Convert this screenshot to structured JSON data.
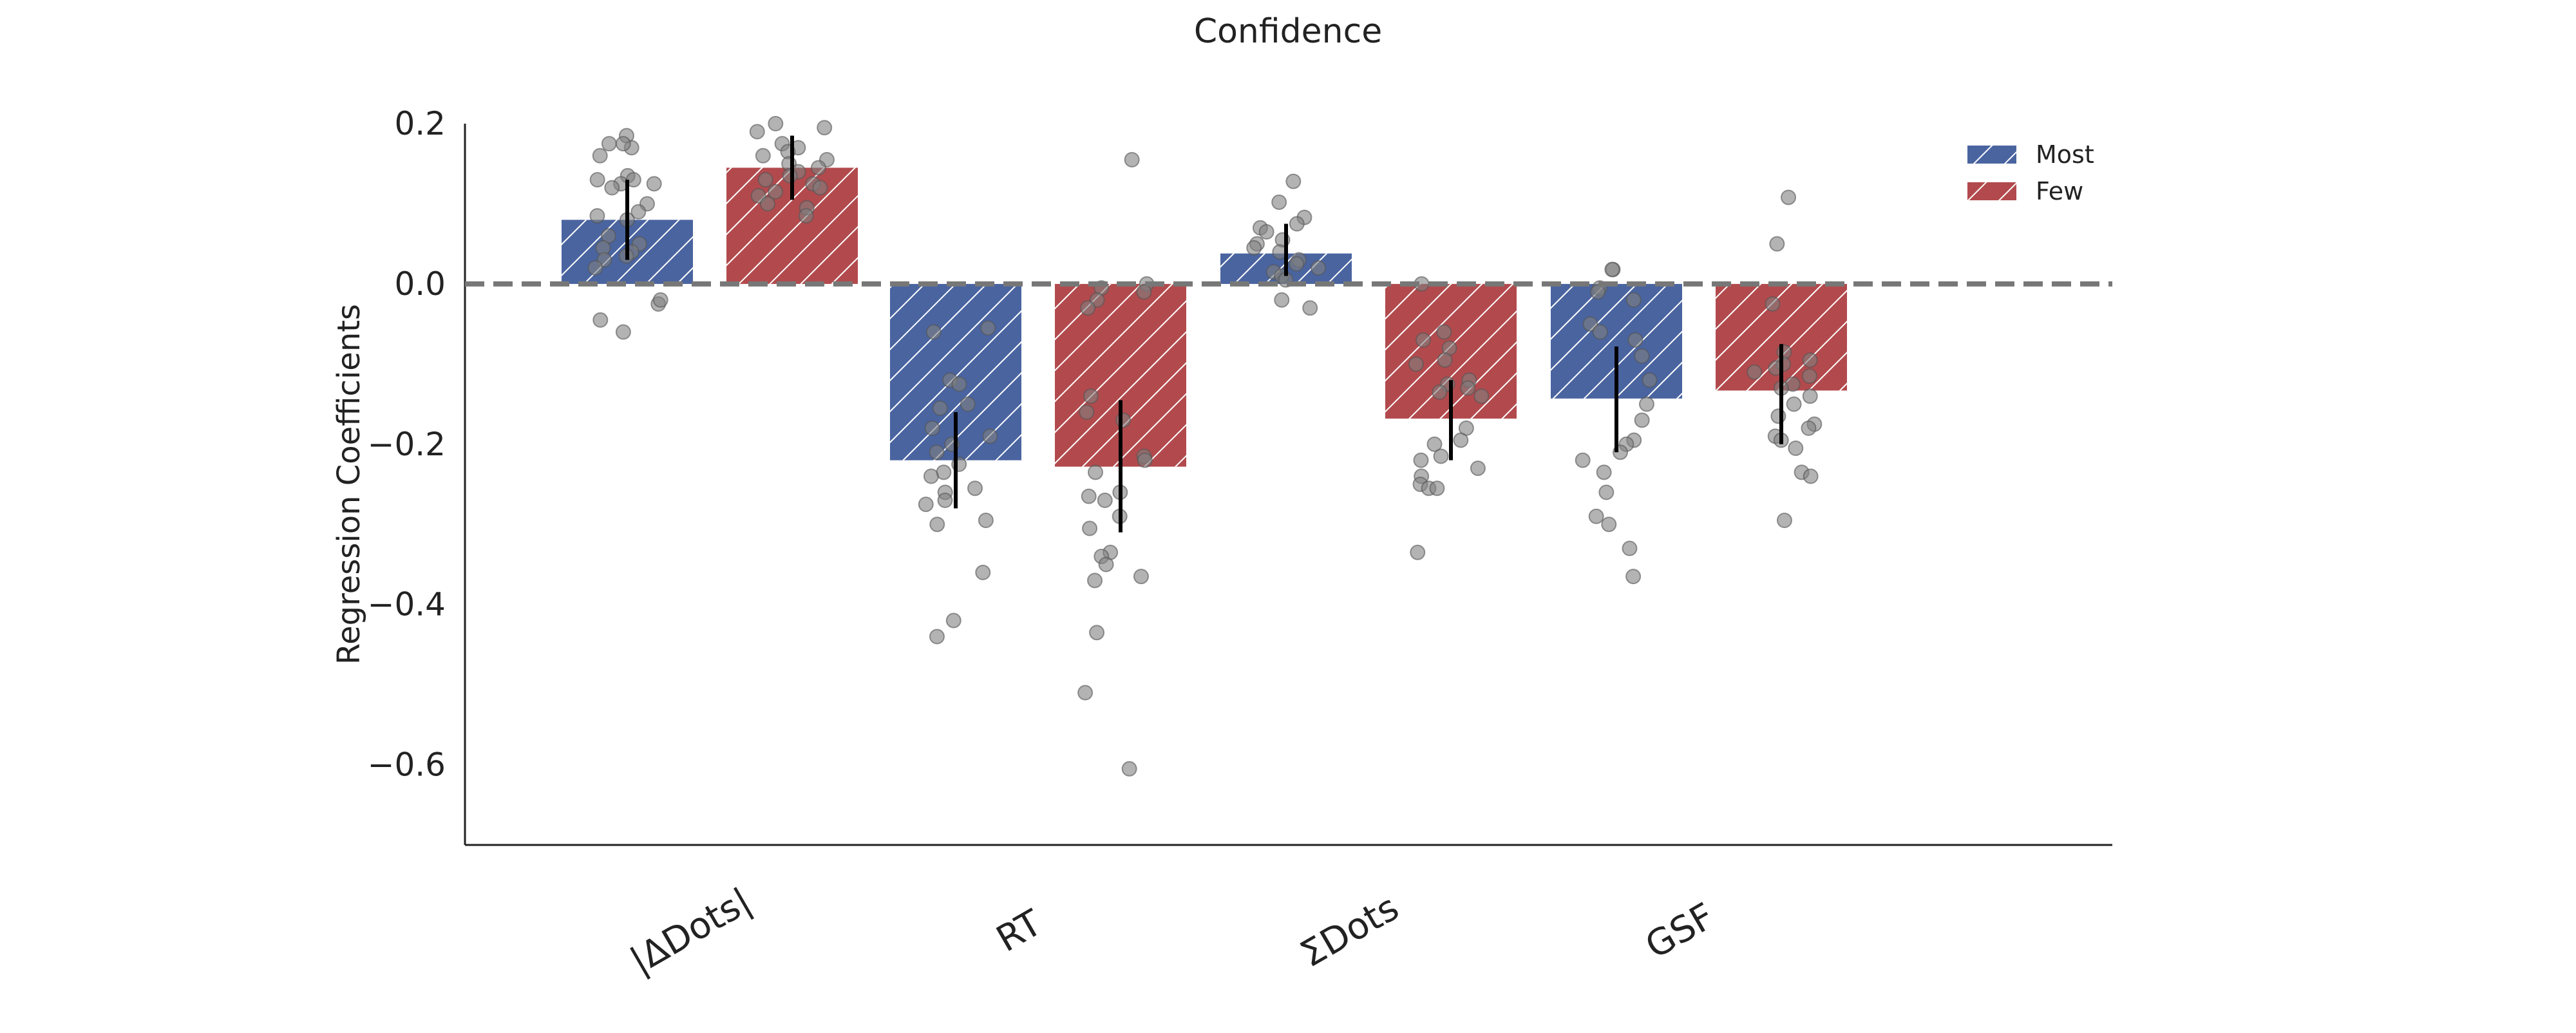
{
  "chart_data": {
    "type": "bar",
    "title": "Confidence",
    "xlabel": "",
    "ylabel": "Regression Coefficients",
    "ylim": [
      -0.7,
      0.2
    ],
    "yticks": [
      0.2,
      0.0,
      -0.2,
      -0.4,
      -0.6
    ],
    "ytick_labels": [
      "0.2",
      "0.0",
      "−0.2",
      "−0.4",
      "−0.6"
    ],
    "categories": [
      "|ΔDots|",
      "RT",
      "ΣDots",
      "GSF"
    ],
    "legend_position": "top-right",
    "grid": false,
    "reference_line": 0.0,
    "colors": {
      "Most": "#4a64a0",
      "Few": "#b24a4d",
      "error_bar": "#000000",
      "point": "#808080",
      "reference": "#777777"
    },
    "series": [
      {
        "name": "Most",
        "values": [
          0.08,
          -0.22,
          0.038,
          -0.143
        ],
        "error_low": [
          0.03,
          -0.28,
          0.01,
          -0.21
        ],
        "error_high": [
          0.13,
          -0.16,
          0.075,
          -0.078
        ],
        "points": [
          [
            0.185,
            0.17,
            0.16,
            0.175,
            0.175,
            0.135,
            0.13,
            0.125,
            0.13,
            0.125,
            0.12,
            0.1,
            0.09,
            0.085,
            0.08,
            0.06,
            0.05,
            0.045,
            0.04,
            0.035,
            0.03,
            0.02,
            -0.025,
            -0.02,
            -0.045,
            -0.06
          ],
          [
            -0.055,
            -0.06,
            -0.12,
            -0.125,
            -0.15,
            -0.155,
            -0.18,
            -0.19,
            -0.2,
            -0.21,
            -0.225,
            -0.235,
            -0.24,
            -0.255,
            -0.26,
            -0.27,
            -0.275,
            -0.295,
            -0.3,
            -0.36,
            -0.42,
            -0.44
          ],
          [
            0.128,
            0.102,
            0.083,
            0.075,
            0.07,
            0.065,
            0.055,
            0.05,
            0.045,
            0.04,
            0.03,
            0.025,
            0.02,
            0.015,
            0.01,
            0.005,
            -0.02,
            -0.03
          ],
          [
            0.018,
            0.018,
            -0.005,
            -0.01,
            -0.02,
            -0.05,
            -0.06,
            -0.07,
            -0.09,
            -0.12,
            -0.15,
            -0.17,
            -0.195,
            -0.2,
            -0.21,
            -0.22,
            -0.235,
            -0.26,
            -0.29,
            -0.3,
            -0.33,
            -0.365
          ]
        ]
      },
      {
        "name": "Few",
        "values": [
          0.145,
          -0.228,
          -0.168,
          -0.133
        ],
        "error_low": [
          0.105,
          -0.31,
          -0.22,
          -0.2
        ],
        "error_high": [
          0.185,
          -0.145,
          -0.12,
          -0.075
        ],
        "points": [
          [
            0.2,
            0.195,
            0.19,
            0.175,
            0.17,
            0.165,
            0.16,
            0.155,
            0.15,
            0.145,
            0.14,
            0.135,
            0.13,
            0.125,
            0.12,
            0.115,
            0.11,
            0.1,
            0.095,
            0.085
          ],
          [
            0.155,
            0.0,
            -0.005,
            -0.01,
            -0.02,
            -0.03,
            -0.14,
            -0.16,
            -0.17,
            -0.215,
            -0.22,
            -0.235,
            -0.26,
            -0.265,
            -0.27,
            -0.29,
            -0.305,
            -0.335,
            -0.34,
            -0.35,
            -0.365,
            -0.37,
            -0.435,
            -0.51,
            -0.605
          ],
          [
            0.0,
            -0.06,
            -0.07,
            -0.08,
            -0.095,
            -0.1,
            -0.12,
            -0.125,
            -0.13,
            -0.135,
            -0.14,
            -0.18,
            -0.195,
            -0.2,
            -0.215,
            -0.22,
            -0.23,
            -0.24,
            -0.25,
            -0.255,
            -0.255,
            -0.335
          ],
          [
            0.108,
            0.05,
            -0.025,
            -0.085,
            -0.095,
            -0.1,
            -0.105,
            -0.11,
            -0.115,
            -0.125,
            -0.13,
            -0.14,
            -0.15,
            -0.165,
            -0.175,
            -0.18,
            -0.19,
            -0.195,
            -0.205,
            -0.235,
            -0.24,
            -0.295
          ]
        ]
      }
    ]
  }
}
